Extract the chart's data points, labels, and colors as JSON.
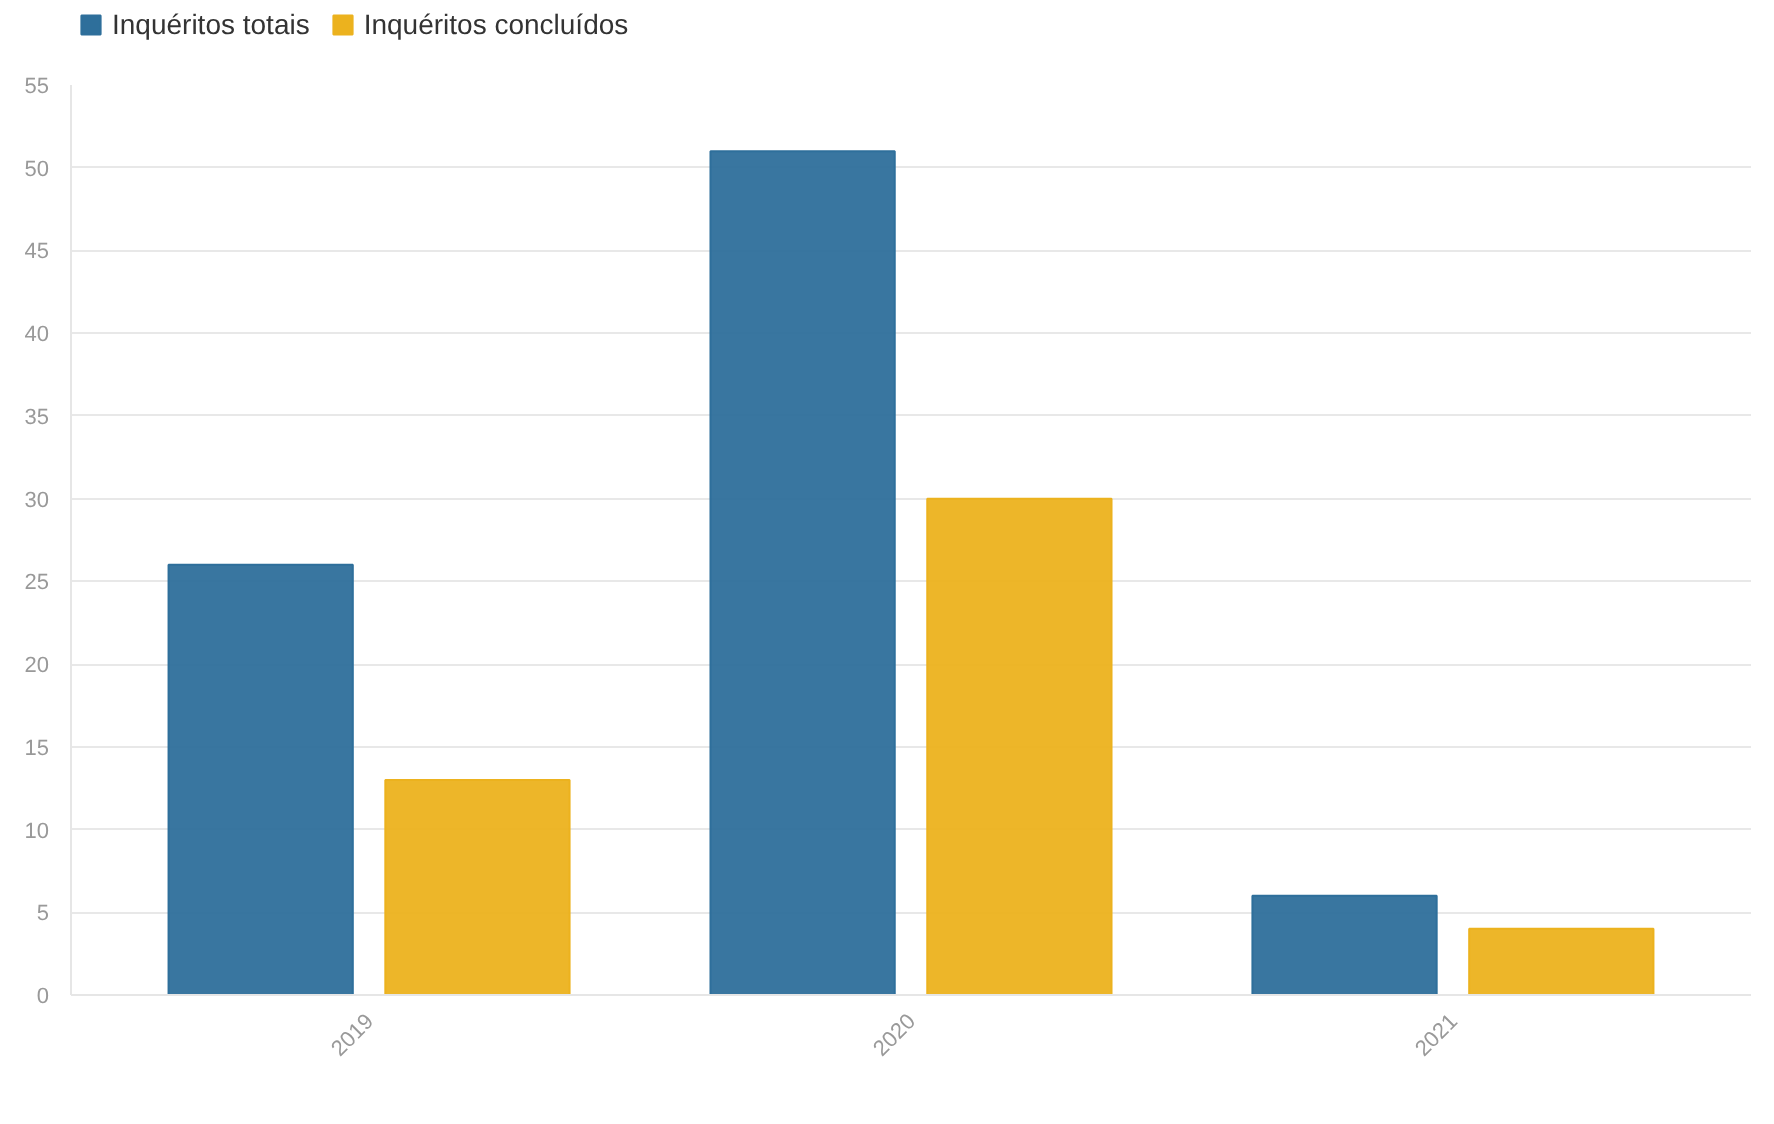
{
  "chart_data": {
    "type": "bar",
    "categories": [
      "2019",
      "2020",
      "2021"
    ],
    "series": [
      {
        "name": "Inquéritos totais",
        "color": "#2e6f9b",
        "values": [
          26,
          51,
          6
        ]
      },
      {
        "name": "Inquéritos concluídos",
        "color": "#ecb21e",
        "values": [
          13,
          30,
          4
        ]
      }
    ],
    "ylim": [
      0,
      55
    ],
    "yticks": [
      0,
      5,
      10,
      15,
      20,
      25,
      30,
      35,
      40,
      45,
      50,
      55
    ],
    "grid": "y",
    "legend": "top left"
  }
}
